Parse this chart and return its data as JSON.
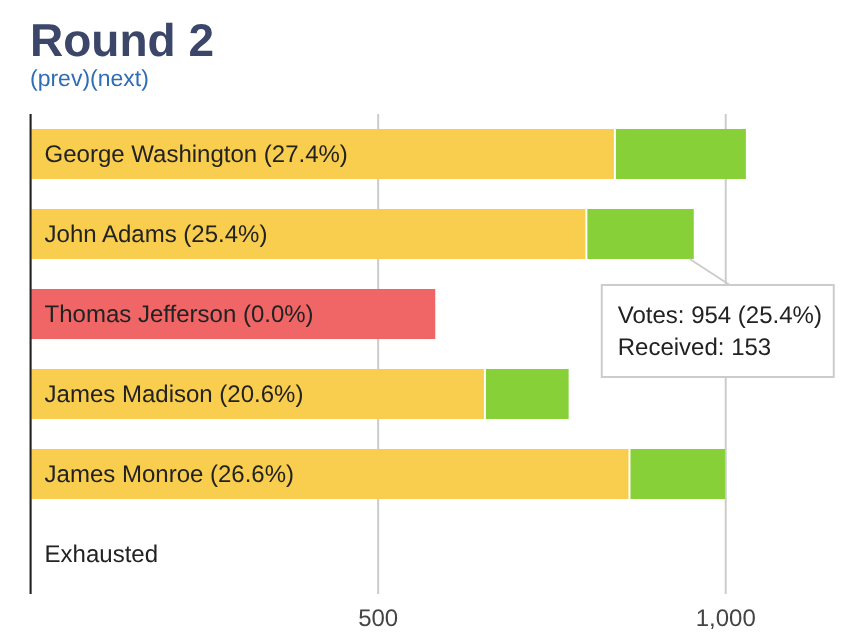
{
  "chart_data": {
    "type": "bar",
    "orientation": "horizontal",
    "stacked": true,
    "title": "Round 2",
    "subtitle": "(prev)(next)",
    "categories": [
      "George Washington (27.4%)",
      "John Adams (25.4%)",
      "Thomas Jefferson (0.0%)",
      "James Madison (20.6%)",
      "James Monroe (26.6%)",
      "Exhausted"
    ],
    "series": [
      {
        "colors": [
          "#f9ce4e",
          "#f9ce4e",
          "#f06565",
          "#f9ce4e",
          "#f9ce4e",
          "#f9ce4e"
        ],
        "values": [
          842,
          801,
          585,
          655,
          863,
          0
        ]
      },
      {
        "color": "#87d037",
        "values": [
          187,
          153,
          0,
          119,
          136,
          0
        ]
      }
    ],
    "xlim": [
      0,
      1150
    ],
    "xticks": [
      {
        "value": 0,
        "label": null
      },
      500,
      {
        "value": 1000,
        "label": "1,000"
      }
    ],
    "grid": "x",
    "annotations": [
      {
        "text": "Votes: 954 (25.4%)",
        "x": 954,
        "y": "John Adams (25.4%)"
      },
      "Received: 153"
    ]
  }
}
